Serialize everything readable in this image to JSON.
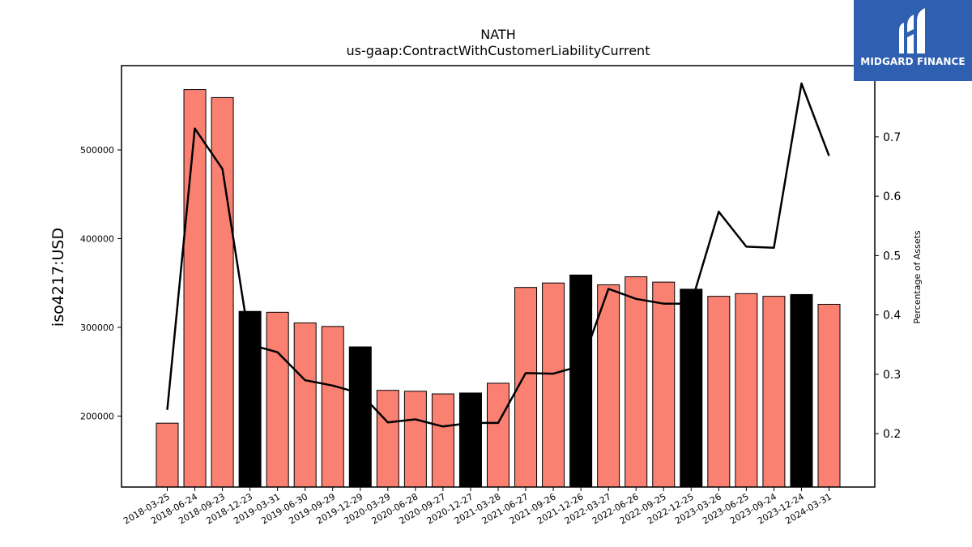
{
  "chart_data": {
    "type": "bar",
    "title": "NATH",
    "subtitle": "us-gaap:ContractWithCustomerLiabilityCurrent",
    "ylabel": "iso4217:USD",
    "y2label": "Percentage of Assets",
    "categories": [
      "2018-03-25",
      "2018-06-24",
      "2018-09-23",
      "2018-12-23",
      "2019-03-31",
      "2019-06-30",
      "2019-09-29",
      "2019-12-29",
      "2020-03-29",
      "2020-06-28",
      "2020-09-27",
      "2020-12-27",
      "2021-03-28",
      "2021-06-27",
      "2021-09-26",
      "2021-12-26",
      "2022-03-27",
      "2022-06-26",
      "2022-09-25",
      "2022-12-25",
      "2023-03-26",
      "2023-06-25",
      "2023-09-24",
      "2023-12-24",
      "2024-03-31"
    ],
    "series": [
      {
        "type": "bar",
        "values": [
          192000,
          568000,
          559000,
          318000,
          317000,
          305000,
          301000,
          278000,
          229000,
          228000,
          225000,
          226000,
          237000,
          345000,
          350000,
          359000,
          348000,
          357000,
          351000,
          343000,
          335000,
          338000,
          335000,
          337000,
          326000
        ],
        "highlight": [
          false,
          false,
          false,
          true,
          false,
          false,
          false,
          true,
          false,
          false,
          false,
          true,
          false,
          false,
          false,
          true,
          false,
          false,
          false,
          true,
          false,
          false,
          false,
          true,
          false
        ]
      },
      {
        "type": "line",
        "axis": "right",
        "values": [
          0.24,
          0.714,
          0.646,
          0.35,
          0.337,
          0.29,
          0.281,
          0.268,
          0.219,
          0.224,
          0.212,
          0.218,
          0.218,
          0.302,
          0.301,
          0.314,
          0.444,
          0.427,
          0.419,
          0.419,
          0.574,
          0.515,
          0.513,
          0.79,
          0.668
        ]
      }
    ],
    "ylim": [
      120000,
      595000
    ],
    "y2lim": [
      0.11,
      0.82
    ],
    "yticks": [
      200000,
      300000,
      400000,
      500000
    ],
    "y2ticks": [
      0.2,
      0.3,
      0.4,
      0.5,
      0.6,
      0.7
    ],
    "colors": {
      "bar": "#fa8072",
      "highlight": "#000000",
      "line": "#000000"
    }
  },
  "logo": {
    "text": "MIDGARD FINANCE"
  }
}
